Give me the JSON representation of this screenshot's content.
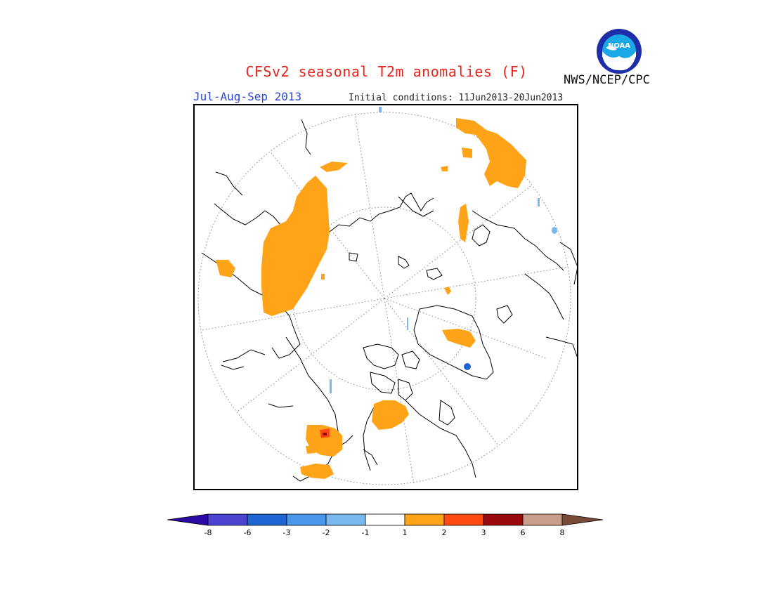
{
  "header": {
    "title": "CFSv2 seasonal T2m anomalies (F)",
    "period": "Jul-Aug-Sep 2013",
    "initial_conditions": "Initial conditions: 11Jun2013-20Jun2013",
    "agency": "NWS/NCEP/CPC",
    "logo_text": "NOAA"
  },
  "colors": {
    "title": "#e8241d",
    "period": "#2a48d8",
    "anomaly_1_2": "#ffa319",
    "anomaly_2_3": "#ff4b12",
    "anomaly_3_6": "#9a0a0a",
    "neg_1_2": "#7ab9f0",
    "neg_2_3": "#4a96ea"
  },
  "legend": {
    "tick_labels": [
      "-8",
      "-6",
      "-3",
      "-2",
      "-1",
      "1",
      "2",
      "3",
      "6",
      "8"
    ],
    "colors": [
      "#2c0aa6",
      "#4b44d0",
      "#1e64d2",
      "#4a96ea",
      "#7ab9f0",
      "#ffffff",
      "#ffa319",
      "#ff4b12",
      "#9a0a0a",
      "#c8a08a",
      "#7a4a38"
    ]
  }
}
